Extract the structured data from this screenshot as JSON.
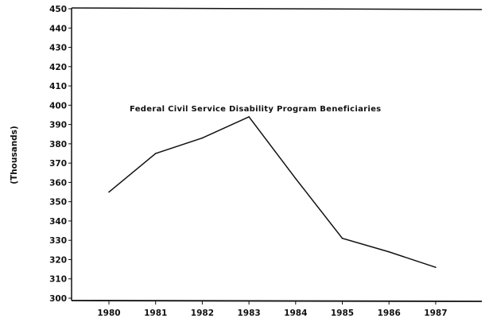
{
  "chart_data": {
    "type": "line",
    "title": "Federal Civil Service Disability Program Beneficiaries",
    "xlabel": "",
    "ylabel": "(Thousands)",
    "categories": [
      "1980",
      "1981",
      "1982",
      "1983",
      "1984",
      "1985",
      "1986",
      "1987"
    ],
    "series": [
      {
        "values": [
          355,
          375,
          383,
          394,
          362,
          331,
          324,
          316
        ]
      }
    ],
    "ylim": [
      300,
      450
    ],
    "yticks": [
      300,
      310,
      320,
      330,
      340,
      350,
      360,
      370,
      380,
      390,
      400,
      410,
      420,
      430,
      440,
      450
    ],
    "grid": false,
    "line_color": "#111111"
  }
}
